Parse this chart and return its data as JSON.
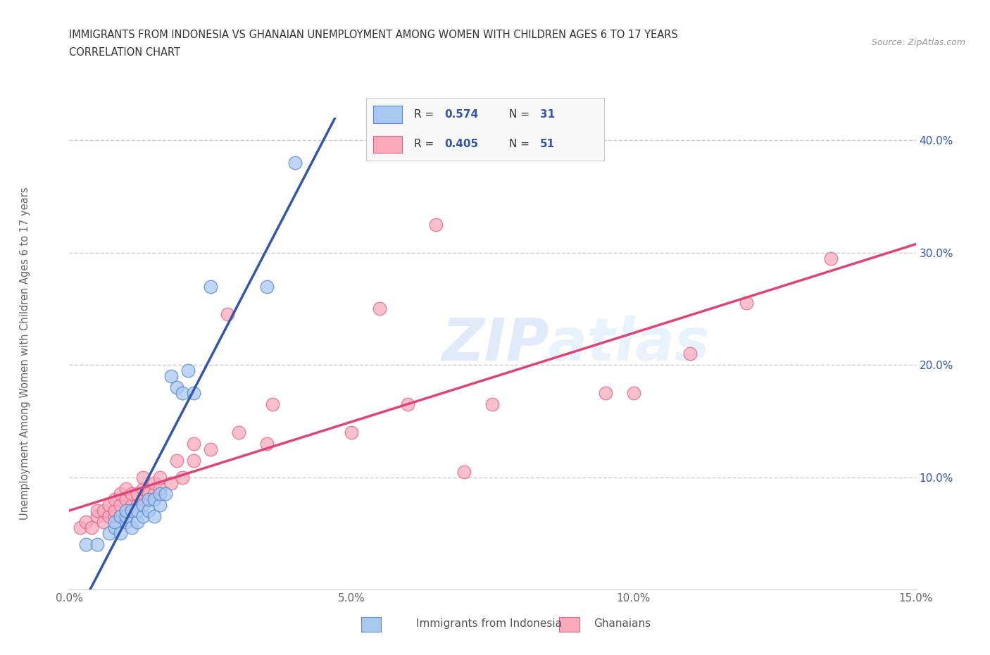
{
  "title_line1": "IMMIGRANTS FROM INDONESIA VS GHANAIAN UNEMPLOYMENT AMONG WOMEN WITH CHILDREN AGES 6 TO 17 YEARS",
  "title_line2": "CORRELATION CHART",
  "source_text": "Source: ZipAtlas.com",
  "ylabel": "Unemployment Among Women with Children Ages 6 to 17 years",
  "xlim": [
    0.0,
    0.15
  ],
  "ylim": [
    0.0,
    0.42
  ],
  "xtick_vals": [
    0.0,
    0.05,
    0.1,
    0.15
  ],
  "xtick_labels": [
    "0.0%",
    "5.0%",
    "10.0%",
    "15.0%"
  ],
  "ytick_vals": [
    0.1,
    0.2,
    0.3,
    0.4
  ],
  "ytick_labels": [
    "10.0%",
    "20.0%",
    "30.0%",
    "40.0%"
  ],
  "watermark_zip": "ZIP",
  "watermark_atlas": "atlas",
  "blue_color": "#A8C8F0",
  "blue_edge_color": "#5588CC",
  "blue_line_color": "#3355AA",
  "pink_color": "#F8AABB",
  "pink_edge_color": "#DD6688",
  "pink_line_color": "#DD4477",
  "legend_r1": "R = 0.574",
  "legend_n1": "N = 31",
  "legend_r2": "R = 0.405",
  "legend_n2": "N = 51",
  "blue_scatter_x": [
    0.003,
    0.005,
    0.007,
    0.008,
    0.008,
    0.009,
    0.009,
    0.01,
    0.01,
    0.01,
    0.011,
    0.011,
    0.012,
    0.012,
    0.013,
    0.013,
    0.014,
    0.014,
    0.015,
    0.015,
    0.016,
    0.016,
    0.017,
    0.018,
    0.019,
    0.02,
    0.021,
    0.022,
    0.025,
    0.035,
    0.04
  ],
  "blue_scatter_y": [
    0.04,
    0.04,
    0.05,
    0.055,
    0.06,
    0.05,
    0.065,
    0.06,
    0.065,
    0.07,
    0.055,
    0.07,
    0.06,
    0.07,
    0.065,
    0.075,
    0.07,
    0.08,
    0.065,
    0.08,
    0.075,
    0.085,
    0.085,
    0.19,
    0.18,
    0.175,
    0.195,
    0.175,
    0.27,
    0.27,
    0.38
  ],
  "pink_scatter_x": [
    0.002,
    0.003,
    0.004,
    0.005,
    0.005,
    0.006,
    0.006,
    0.007,
    0.007,
    0.008,
    0.008,
    0.008,
    0.009,
    0.009,
    0.009,
    0.01,
    0.01,
    0.01,
    0.011,
    0.011,
    0.012,
    0.012,
    0.013,
    0.013,
    0.013,
    0.014,
    0.015,
    0.015,
    0.016,
    0.016,
    0.018,
    0.019,
    0.02,
    0.022,
    0.022,
    0.025,
    0.028,
    0.03,
    0.035,
    0.036,
    0.05,
    0.055,
    0.06,
    0.065,
    0.07,
    0.075,
    0.095,
    0.1,
    0.11,
    0.12,
    0.135
  ],
  "pink_scatter_y": [
    0.055,
    0.06,
    0.055,
    0.065,
    0.07,
    0.06,
    0.07,
    0.065,
    0.075,
    0.065,
    0.07,
    0.08,
    0.065,
    0.075,
    0.085,
    0.07,
    0.08,
    0.09,
    0.075,
    0.085,
    0.075,
    0.085,
    0.08,
    0.09,
    0.1,
    0.085,
    0.085,
    0.095,
    0.09,
    0.1,
    0.095,
    0.115,
    0.1,
    0.115,
    0.13,
    0.125,
    0.245,
    0.14,
    0.13,
    0.165,
    0.14,
    0.25,
    0.165,
    0.325,
    0.105,
    0.165,
    0.175,
    0.175,
    0.21,
    0.255,
    0.295
  ],
  "background_color": "#FFFFFF",
  "grid_color": "#CCCCCC"
}
